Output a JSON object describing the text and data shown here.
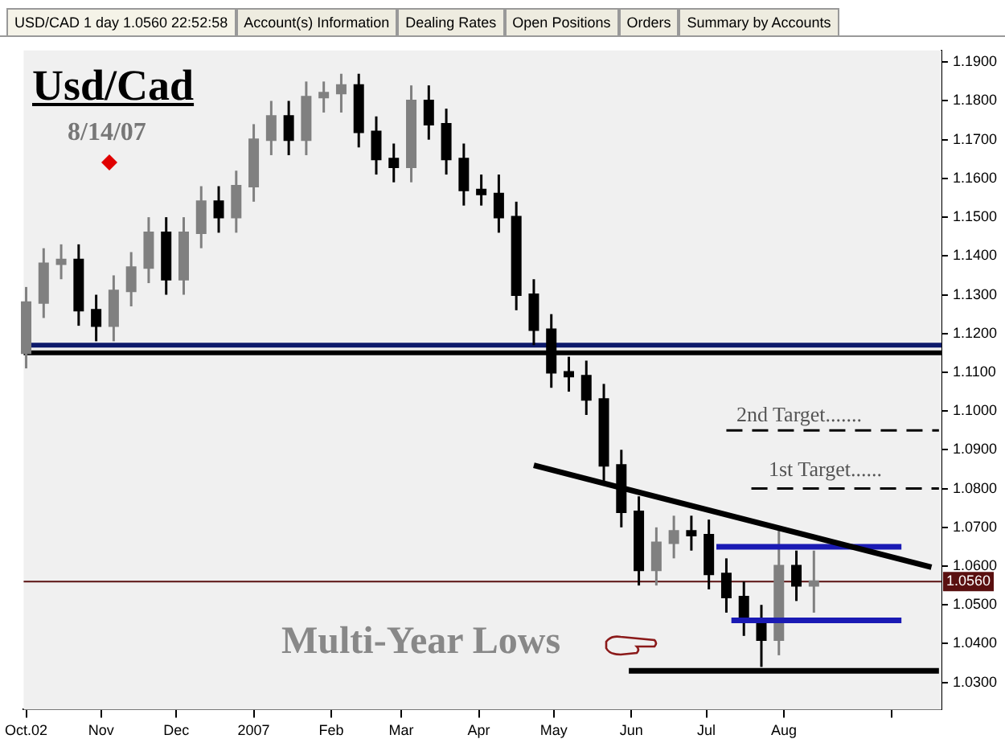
{
  "chart_data": {
    "type": "candlestick",
    "title": "Usd/Cad",
    "subtitle": "8/14/07",
    "annotations": [
      "USD/CAD 1 day 1.0560 22:52:58",
      "Account(s) Information",
      "Dealing Rates",
      "Open Positions",
      "Orders",
      "Summary by Accounts",
      "2nd Target.......",
      "1st Target......",
      "Multi-Year Lows"
    ],
    "series": [
      {
        "type": "candlestick",
        "colors": [
          "#808080",
          "#808080",
          "#808080",
          "#000000",
          "#000000",
          "#808080",
          "#808080",
          "#808080",
          "#000000",
          "#808080",
          "#808080",
          "#000000",
          "#808080",
          "#808080",
          "#808080",
          "#000000",
          "#808080",
          "#808080",
          "#808080",
          "#000000",
          "#000000",
          "#000000",
          "#808080",
          "#000000",
          "#000000",
          "#000000",
          "#000000",
          "#000000",
          "#000000",
          "#000000",
          "#000000",
          "#000000",
          "#000000",
          "#000000",
          "#000000",
          "#000000",
          "#808080",
          "#808080",
          "#000000",
          "#000000",
          "#000000",
          "#000000",
          "#000000",
          "#808080",
          "#000000",
          "#808080"
        ],
        "x": [
          "2006-10-02",
          "2006-10-09",
          "2006-10-16",
          "2006-10-23",
          "2006-10-30",
          "2006-11-06",
          "2006-11-13",
          "2006-11-20",
          "2006-11-27",
          "2006-12-04",
          "2006-12-11",
          "2006-12-18",
          "2006-12-25",
          "2007-01-01",
          "2007-01-08",
          "2007-01-15",
          "2007-01-22",
          "2007-01-29",
          "2007-02-05",
          "2007-02-12",
          "2007-02-19",
          "2007-02-26",
          "2007-03-05",
          "2007-03-12",
          "2007-03-19",
          "2007-03-26",
          "2007-04-02",
          "2007-04-09",
          "2007-04-16",
          "2007-04-23",
          "2007-04-30",
          "2007-05-07",
          "2007-05-14",
          "2007-05-21",
          "2007-05-28",
          "2007-06-04",
          "2007-06-11",
          "2007-06-18",
          "2007-06-25",
          "2007-07-02",
          "2007-07-09",
          "2007-07-16",
          "2007-07-23",
          "2007-07-30",
          "2007-08-06",
          "2007-08-13"
        ],
        "ohlc": [
          [
            1.115,
            1.132,
            1.111,
            1.128
          ],
          [
            1.128,
            1.142,
            1.124,
            1.138
          ],
          [
            1.138,
            1.143,
            1.134,
            1.139
          ],
          [
            1.139,
            1.143,
            1.122,
            1.126
          ],
          [
            1.126,
            1.13,
            1.118,
            1.122
          ],
          [
            1.122,
            1.135,
            1.118,
            1.131
          ],
          [
            1.131,
            1.141,
            1.127,
            1.137
          ],
          [
            1.137,
            1.15,
            1.133,
            1.146
          ],
          [
            1.146,
            1.15,
            1.13,
            1.134
          ],
          [
            1.134,
            1.15,
            1.13,
            1.146
          ],
          [
            1.146,
            1.158,
            1.142,
            1.154
          ],
          [
            1.154,
            1.158,
            1.146,
            1.15
          ],
          [
            1.15,
            1.162,
            1.146,
            1.158
          ],
          [
            1.158,
            1.174,
            1.154,
            1.17
          ],
          [
            1.17,
            1.18,
            1.166,
            1.176
          ],
          [
            1.176,
            1.18,
            1.166,
            1.17
          ],
          [
            1.17,
            1.185,
            1.166,
            1.181
          ],
          [
            1.181,
            1.185,
            1.177,
            1.182
          ],
          [
            1.182,
            1.187,
            1.177,
            1.184
          ],
          [
            1.184,
            1.187,
            1.168,
            1.172
          ],
          [
            1.172,
            1.176,
            1.161,
            1.165
          ],
          [
            1.165,
            1.169,
            1.159,
            1.163
          ],
          [
            1.163,
            1.184,
            1.159,
            1.18
          ],
          [
            1.18,
            1.184,
            1.17,
            1.174
          ],
          [
            1.174,
            1.178,
            1.161,
            1.165
          ],
          [
            1.165,
            1.169,
            1.153,
            1.157
          ],
          [
            1.157,
            1.161,
            1.153,
            1.156
          ],
          [
            1.156,
            1.161,
            1.146,
            1.15
          ],
          [
            1.15,
            1.154,
            1.126,
            1.13
          ],
          [
            1.13,
            1.134,
            1.117,
            1.121
          ],
          [
            1.121,
            1.125,
            1.106,
            1.11
          ],
          [
            1.11,
            1.114,
            1.105,
            1.109
          ],
          [
            1.109,
            1.113,
            1.099,
            1.103
          ],
          [
            1.103,
            1.107,
            1.082,
            1.086
          ],
          [
            1.086,
            1.09,
            1.07,
            1.074
          ],
          [
            1.074,
            1.078,
            1.055,
            1.059
          ],
          [
            1.059,
            1.07,
            1.055,
            1.066
          ],
          [
            1.066,
            1.073,
            1.062,
            1.069
          ],
          [
            1.069,
            1.073,
            1.064,
            1.068
          ],
          [
            1.068,
            1.072,
            1.054,
            1.058
          ],
          [
            1.058,
            1.062,
            1.048,
            1.052
          ],
          [
            1.052,
            1.056,
            1.042,
            1.046
          ],
          [
            1.046,
            1.05,
            1.034,
            1.041
          ],
          [
            1.041,
            1.07,
            1.037,
            1.06
          ],
          [
            1.06,
            1.064,
            1.051,
            1.055
          ],
          [
            1.055,
            1.064,
            1.048,
            1.056
          ]
        ]
      },
      {
        "type": "line",
        "color": "#000000",
        "x": [
          "2007-04-23",
          "2007-09-29"
        ],
        "values": [
          1.086,
          1.0597
        ]
      },
      {
        "type": "line",
        "color": "#1a1ab4",
        "x": [
          "2007-07-05",
          "2007-09-17"
        ],
        "values": [
          1.065,
          1.065
        ]
      },
      {
        "type": "line",
        "color": "#1a1ab4",
        "x": [
          "2007-07-11",
          "2007-09-17"
        ],
        "values": [
          1.046,
          1.046
        ]
      },
      {
        "type": "line",
        "color": "#000000",
        "x": [
          "2007-05-31",
          "2007-10-02"
        ],
        "values": [
          1.033,
          1.033
        ]
      },
      {
        "type": "line",
        "color": "#000000",
        "line_style": "dashed",
        "x": [
          "2007-07-09",
          "2007-10-02"
        ],
        "values": [
          1.095,
          1.095
        ]
      },
      {
        "type": "line",
        "color": "#000000",
        "line_style": "dashed",
        "x": [
          "2007-07-19",
          "2007-10-02"
        ],
        "values": [
          1.08,
          1.08
        ]
      }
    ],
    "ref_lines": [
      {
        "axis": "y",
        "value": 1.117,
        "color": "#0d1a6b"
      },
      {
        "axis": "y",
        "value": 1.115,
        "color": "#000000"
      },
      {
        "axis": "y",
        "value": 1.056,
        "color": "#5a1010",
        "label": "1.0560"
      }
    ],
    "xlim": [
      "2006-10-01",
      "2007-10-03"
    ],
    "xticks": [
      {
        "value": "2006-10-02",
        "label": "Oct.02"
      },
      {
        "value": "2006-11-01",
        "label": "Nov"
      },
      {
        "value": "2006-12-01",
        "label": "Dec"
      },
      {
        "value": "2007-01-01",
        "label": "2007"
      },
      {
        "value": "2007-02-01",
        "label": "Feb"
      },
      {
        "value": "2007-03-01",
        "label": "Mar"
      },
      {
        "value": "2007-04-01",
        "label": "Apr"
      },
      {
        "value": "2007-05-01",
        "label": "May"
      },
      {
        "value": "2007-06-01",
        "label": "Jun"
      },
      {
        "value": "2007-07-01",
        "label": "Jul"
      },
      {
        "value": "2007-08-01",
        "label": "Aug"
      },
      {
        "value": "2007-09-13",
        "label": null
      }
    ],
    "ylim": [
      1.023,
      1.193
    ],
    "yticks": [
      {
        "value": 1.03,
        "label": "1.0300"
      },
      {
        "value": 1.04,
        "label": "1.0400"
      },
      {
        "value": 1.05,
        "label": "1.0500"
      },
      {
        "value": 1.06,
        "label": "1.0600"
      },
      {
        "value": 1.07,
        "label": "1.0700"
      },
      {
        "value": 1.08,
        "label": "1.0800"
      },
      {
        "value": 1.09,
        "label": "1.0900"
      },
      {
        "value": 1.1,
        "label": "1.1000"
      },
      {
        "value": 1.11,
        "label": "1.1100"
      },
      {
        "value": 1.12,
        "label": "1.1200"
      },
      {
        "value": 1.13,
        "label": "1.1300"
      },
      {
        "value": 1.14,
        "label": "1.1400"
      },
      {
        "value": 1.15,
        "label": "1.1500"
      },
      {
        "value": 1.16,
        "label": "1.1600"
      },
      {
        "value": 1.17,
        "label": "1.1700"
      },
      {
        "value": 1.18,
        "label": "1.1800"
      },
      {
        "value": 1.19,
        "label": "1.1900"
      }
    ],
    "grid": false,
    "legend": false
  }
}
